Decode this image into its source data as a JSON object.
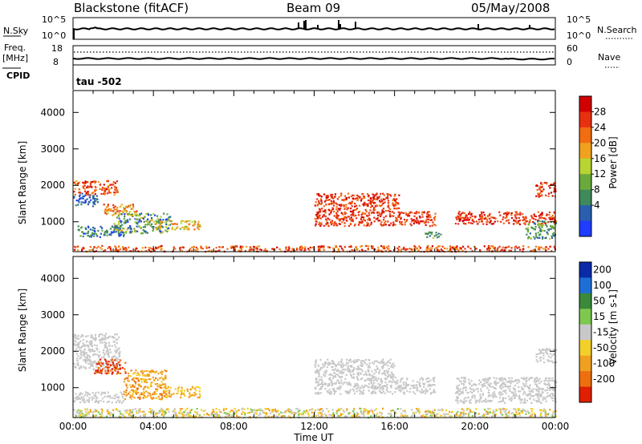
{
  "header": {
    "station": "Blackstone (fitACF)",
    "beam": "Beam 09",
    "date": "05/May/2008"
  },
  "noise_panel": {
    "left_label": "N.Sky",
    "left_ticks": [
      "10^5",
      "10^0"
    ],
    "right_ticks": [
      "10^5",
      "10^0"
    ],
    "right_label": "N.Search"
  },
  "freq_panel": {
    "left_label_1": "Freq.",
    "left_label_2": "[MHz]",
    "left_ticks": [
      "18",
      "8"
    ],
    "right_ticks": [
      "60",
      "0"
    ],
    "right_label": "Nave"
  },
  "cpid": {
    "label": "CPID",
    "value": "tau -502"
  },
  "colors": {
    "line": "#000000",
    "power_scale": [
      "#1f3cff",
      "#2a5fb0",
      "#3f8a5a",
      "#6aaa3c",
      "#b8d432",
      "#f0a21e",
      "#f26c12",
      "#e83010",
      "#d10000"
    ],
    "velocity_scale": [
      "#0a2aa8",
      "#1d6fd6",
      "#3a8a3a",
      "#7ec850",
      "#c8c8c8",
      "#f2cf29",
      "#f0a020",
      "#ee6f10",
      "#e02000"
    ]
  },
  "chart_data": [
    {
      "type": "heatmap",
      "name": "Power",
      "ylabel": "Slant Range [km]",
      "y_ticks": [
        "1000",
        "2000",
        "3000",
        "4000"
      ],
      "ylim": [
        180,
        4600
      ],
      "x_ticks": [
        "00:00",
        "04:00",
        "08:00",
        "12:00",
        "16:00",
        "20:00",
        "00:00"
      ],
      "xlim_hours": [
        0,
        24
      ],
      "colorbar_label": "Power [dB]",
      "colorbar_ticks": [
        "4",
        "8",
        "12",
        "16",
        "20",
        "24",
        "28"
      ],
      "scatter_regions": [
        {
          "t": [
            0.0,
            1.2
          ],
          "r": [
            1450,
            1800
          ],
          "level": [
            6,
            8
          ]
        },
        {
          "t": [
            0.0,
            2.2
          ],
          "r": [
            1750,
            2150
          ],
          "level": [
            0,
            3
          ]
        },
        {
          "t": [
            0.2,
            2.5
          ],
          "r": [
            600,
            900
          ],
          "level": [
            5,
            8
          ]
        },
        {
          "t": [
            1.5,
            3.2
          ],
          "r": [
            1200,
            1500
          ],
          "level": [
            1,
            4
          ]
        },
        {
          "t": [
            2.0,
            4.8
          ],
          "r": [
            700,
            1250
          ],
          "level": [
            3,
            8
          ]
        },
        {
          "t": [
            4.0,
            6.3
          ],
          "r": [
            800,
            1050
          ],
          "level": [
            2,
            5
          ]
        },
        {
          "t": [
            0.0,
            24.0
          ],
          "r": [
            200,
            360
          ],
          "level": [
            0,
            3
          ]
        },
        {
          "t": [
            12.0,
            16.2
          ],
          "r": [
            1300,
            1800
          ],
          "level": [
            0,
            2
          ]
        },
        {
          "t": [
            12.0,
            18.0
          ],
          "r": [
            900,
            1300
          ],
          "level": [
            0,
            2
          ]
        },
        {
          "t": [
            17.5,
            18.3
          ],
          "r": [
            550,
            750
          ],
          "level": [
            4,
            7
          ]
        },
        {
          "t": [
            19.0,
            24.0
          ],
          "r": [
            950,
            1300
          ],
          "level": [
            0,
            2
          ]
        },
        {
          "t": [
            22.5,
            24.0
          ],
          "r": [
            550,
            1050
          ],
          "level": [
            4,
            7
          ]
        },
        {
          "t": [
            23.0,
            24.0
          ],
          "r": [
            1700,
            2100
          ],
          "level": [
            0,
            2
          ]
        }
      ]
    },
    {
      "type": "heatmap",
      "name": "Velocity",
      "ylabel": "Slant Range [km]",
      "y_ticks": [
        "1000",
        "2000",
        "3000",
        "4000"
      ],
      "ylim": [
        180,
        4600
      ],
      "x_ticks": [
        "00:00",
        "04:00",
        "08:00",
        "12:00",
        "16:00",
        "20:00",
        "00:00"
      ],
      "xlim_hours": [
        0,
        24
      ],
      "xlabel": "Time UT",
      "colorbar_label": "Velocity [m s-1]",
      "colorbar_ticks": [
        "200",
        "100",
        "50",
        "15",
        "-15",
        "-50",
        "-100",
        "-200"
      ],
      "scatter_regions": [
        {
          "t": [
            0.0,
            2.3
          ],
          "r": [
            1500,
            2500
          ],
          "level": [
            4,
            4
          ]
        },
        {
          "t": [
            0.0,
            2.5
          ],
          "r": [
            600,
            900
          ],
          "level": [
            4,
            4
          ]
        },
        {
          "t": [
            1.0,
            2.6
          ],
          "r": [
            1400,
            1800
          ],
          "level": [
            7,
            8
          ]
        },
        {
          "t": [
            2.5,
            4.6
          ],
          "r": [
            700,
            1500
          ],
          "level": [
            5,
            7
          ]
        },
        {
          "t": [
            4.5,
            6.3
          ],
          "r": [
            750,
            1050
          ],
          "level": [
            5,
            6
          ]
        },
        {
          "t": [
            0.0,
            24.0
          ],
          "r": [
            200,
            450
          ],
          "level": [
            3,
            6
          ]
        },
        {
          "t": [
            12.0,
            16.0
          ],
          "r": [
            1300,
            1800
          ],
          "level": [
            4,
            4
          ]
        },
        {
          "t": [
            12.0,
            18.0
          ],
          "r": [
            850,
            1300
          ],
          "level": [
            4,
            4
          ]
        },
        {
          "t": [
            19.0,
            24.0
          ],
          "r": [
            600,
            1300
          ],
          "level": [
            4,
            4
          ]
        },
        {
          "t": [
            23.0,
            24.0
          ],
          "r": [
            1700,
            2100
          ],
          "level": [
            4,
            4
          ]
        }
      ]
    }
  ]
}
